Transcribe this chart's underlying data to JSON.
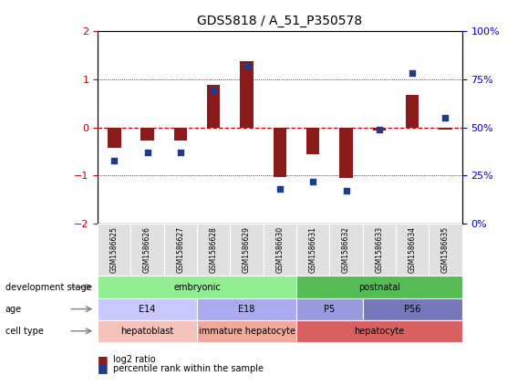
{
  "title": "GDS5818 / A_51_P350578",
  "samples": [
    "GSM1586625",
    "GSM1586626",
    "GSM1586627",
    "GSM1586628",
    "GSM1586629",
    "GSM1586630",
    "GSM1586631",
    "GSM1586632",
    "GSM1586633",
    "GSM1586634",
    "GSM1586635"
  ],
  "log2_ratio": [
    -0.42,
    -0.28,
    -0.28,
    0.88,
    1.38,
    -1.02,
    -0.55,
    -1.05,
    -0.06,
    0.68,
    -0.05
  ],
  "percentile": [
    33,
    37,
    37,
    69,
    82,
    18,
    22,
    17,
    49,
    78,
    55
  ],
  "ylim_left": [
    -2,
    2
  ],
  "ylim_right": [
    0,
    100
  ],
  "bar_color": "#8B1A1A",
  "dot_color": "#1F3B8C",
  "hline_color": "#CC0000",
  "development_stage": [
    {
      "start": 0,
      "end": 6,
      "color": "#90EE90",
      "label": "embryonic"
    },
    {
      "start": 6,
      "end": 11,
      "color": "#55BB55",
      "label": "postnatal"
    }
  ],
  "age": [
    {
      "start": 0,
      "end": 3,
      "color": "#C8C8FF",
      "label": "E14"
    },
    {
      "start": 3,
      "end": 6,
      "color": "#AAAAEE",
      "label": "E18"
    },
    {
      "start": 6,
      "end": 8,
      "color": "#9999DD",
      "label": "P5"
    },
    {
      "start": 8,
      "end": 11,
      "color": "#7777BB",
      "label": "P56"
    }
  ],
  "cell_type": [
    {
      "start": 0,
      "end": 3,
      "color": "#F4C2B8",
      "label": "hepatoblast"
    },
    {
      "start": 3,
      "end": 6,
      "color": "#F0A898",
      "label": "immature hepatocyte"
    },
    {
      "start": 6,
      "end": 11,
      "color": "#D96060",
      "label": "hepatocyte"
    }
  ],
  "row_labels": [
    "development stage",
    "age",
    "cell type"
  ],
  "legend_log2": "log2 ratio",
  "legend_pct": "percentile rank within the sample",
  "tick_color_left": "#CC0000",
  "tick_color_right": "#0000CC"
}
